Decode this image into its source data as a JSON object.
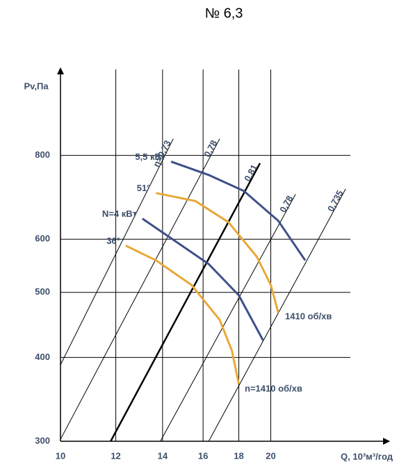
{
  "chart_data": {
    "type": "line",
    "title": "№ 6,3",
    "y_label": "Pv,Па",
    "x_label": "Q, 10³м³/год",
    "x_scale": "log",
    "y_scale": "log",
    "grid": true,
    "xlim": [
      10,
      26
    ],
    "ylim": [
      300,
      1000
    ],
    "xticks": [
      10,
      12,
      14,
      16,
      18,
      20
    ],
    "yticks": [
      300,
      400,
      500,
      600,
      800
    ],
    "series": [
      {
        "name": "η=0,73",
        "color": "#000000",
        "line_width": 1,
        "x": [
          10,
          14.5
        ],
        "values": [
          390,
          847
        ]
      },
      {
        "name": "0,78",
        "color": "#000000",
        "line_width": 1,
        "x": [
          10,
          16.9
        ],
        "values": [
          302,
          847
        ]
      },
      {
        "name": "0,81",
        "color": "#000000",
        "line_width": 2.5,
        "x": [
          11.8,
          19.3
        ],
        "values": [
          300,
          779
        ]
      },
      {
        "name": "0,78",
        "color": "#000000",
        "line_width": 1,
        "x": [
          13.9,
          21.7
        ],
        "values": [
          300,
          700
        ]
      },
      {
        "name": "0,735",
        "color": "#000000",
        "line_width": 1,
        "x": [
          16.3,
          25.6
        ],
        "values": [
          300,
          713
        ]
      },
      {
        "name": "5,5 кВт",
        "color": "#3d4f8a",
        "line_width": 3,
        "x": [
          14.4,
          16.3,
          18.3,
          20.5,
          22.4
        ],
        "values": [
          783,
          748,
          708,
          639,
          558
        ]
      },
      {
        "name": "51°",
        "color": "#e8a838",
        "line_width": 3,
        "x": [
          13.7,
          15.6,
          17.4,
          19.1,
          20.0,
          20.5
        ],
        "values": [
          703,
          684,
          636,
          565,
          513,
          466
        ]
      },
      {
        "name": "N=4 кВт",
        "color": "#3d4f8a",
        "line_width": 3,
        "x": [
          13.1,
          14.5,
          16.3,
          18.0,
          19.5
        ],
        "values": [
          644,
          599,
          551,
          495,
          424
        ]
      },
      {
        "name": "36°",
        "color": "#e8a838",
        "line_width": 3,
        "x": [
          12.4,
          13.7,
          15.4,
          16.9,
          17.6,
          18.0
        ],
        "values": [
          587,
          558,
          513,
          455,
          409,
          365
        ]
      }
    ],
    "annotations": [
      "1410 об/хв",
      "n=1410 об/хв"
    ]
  }
}
